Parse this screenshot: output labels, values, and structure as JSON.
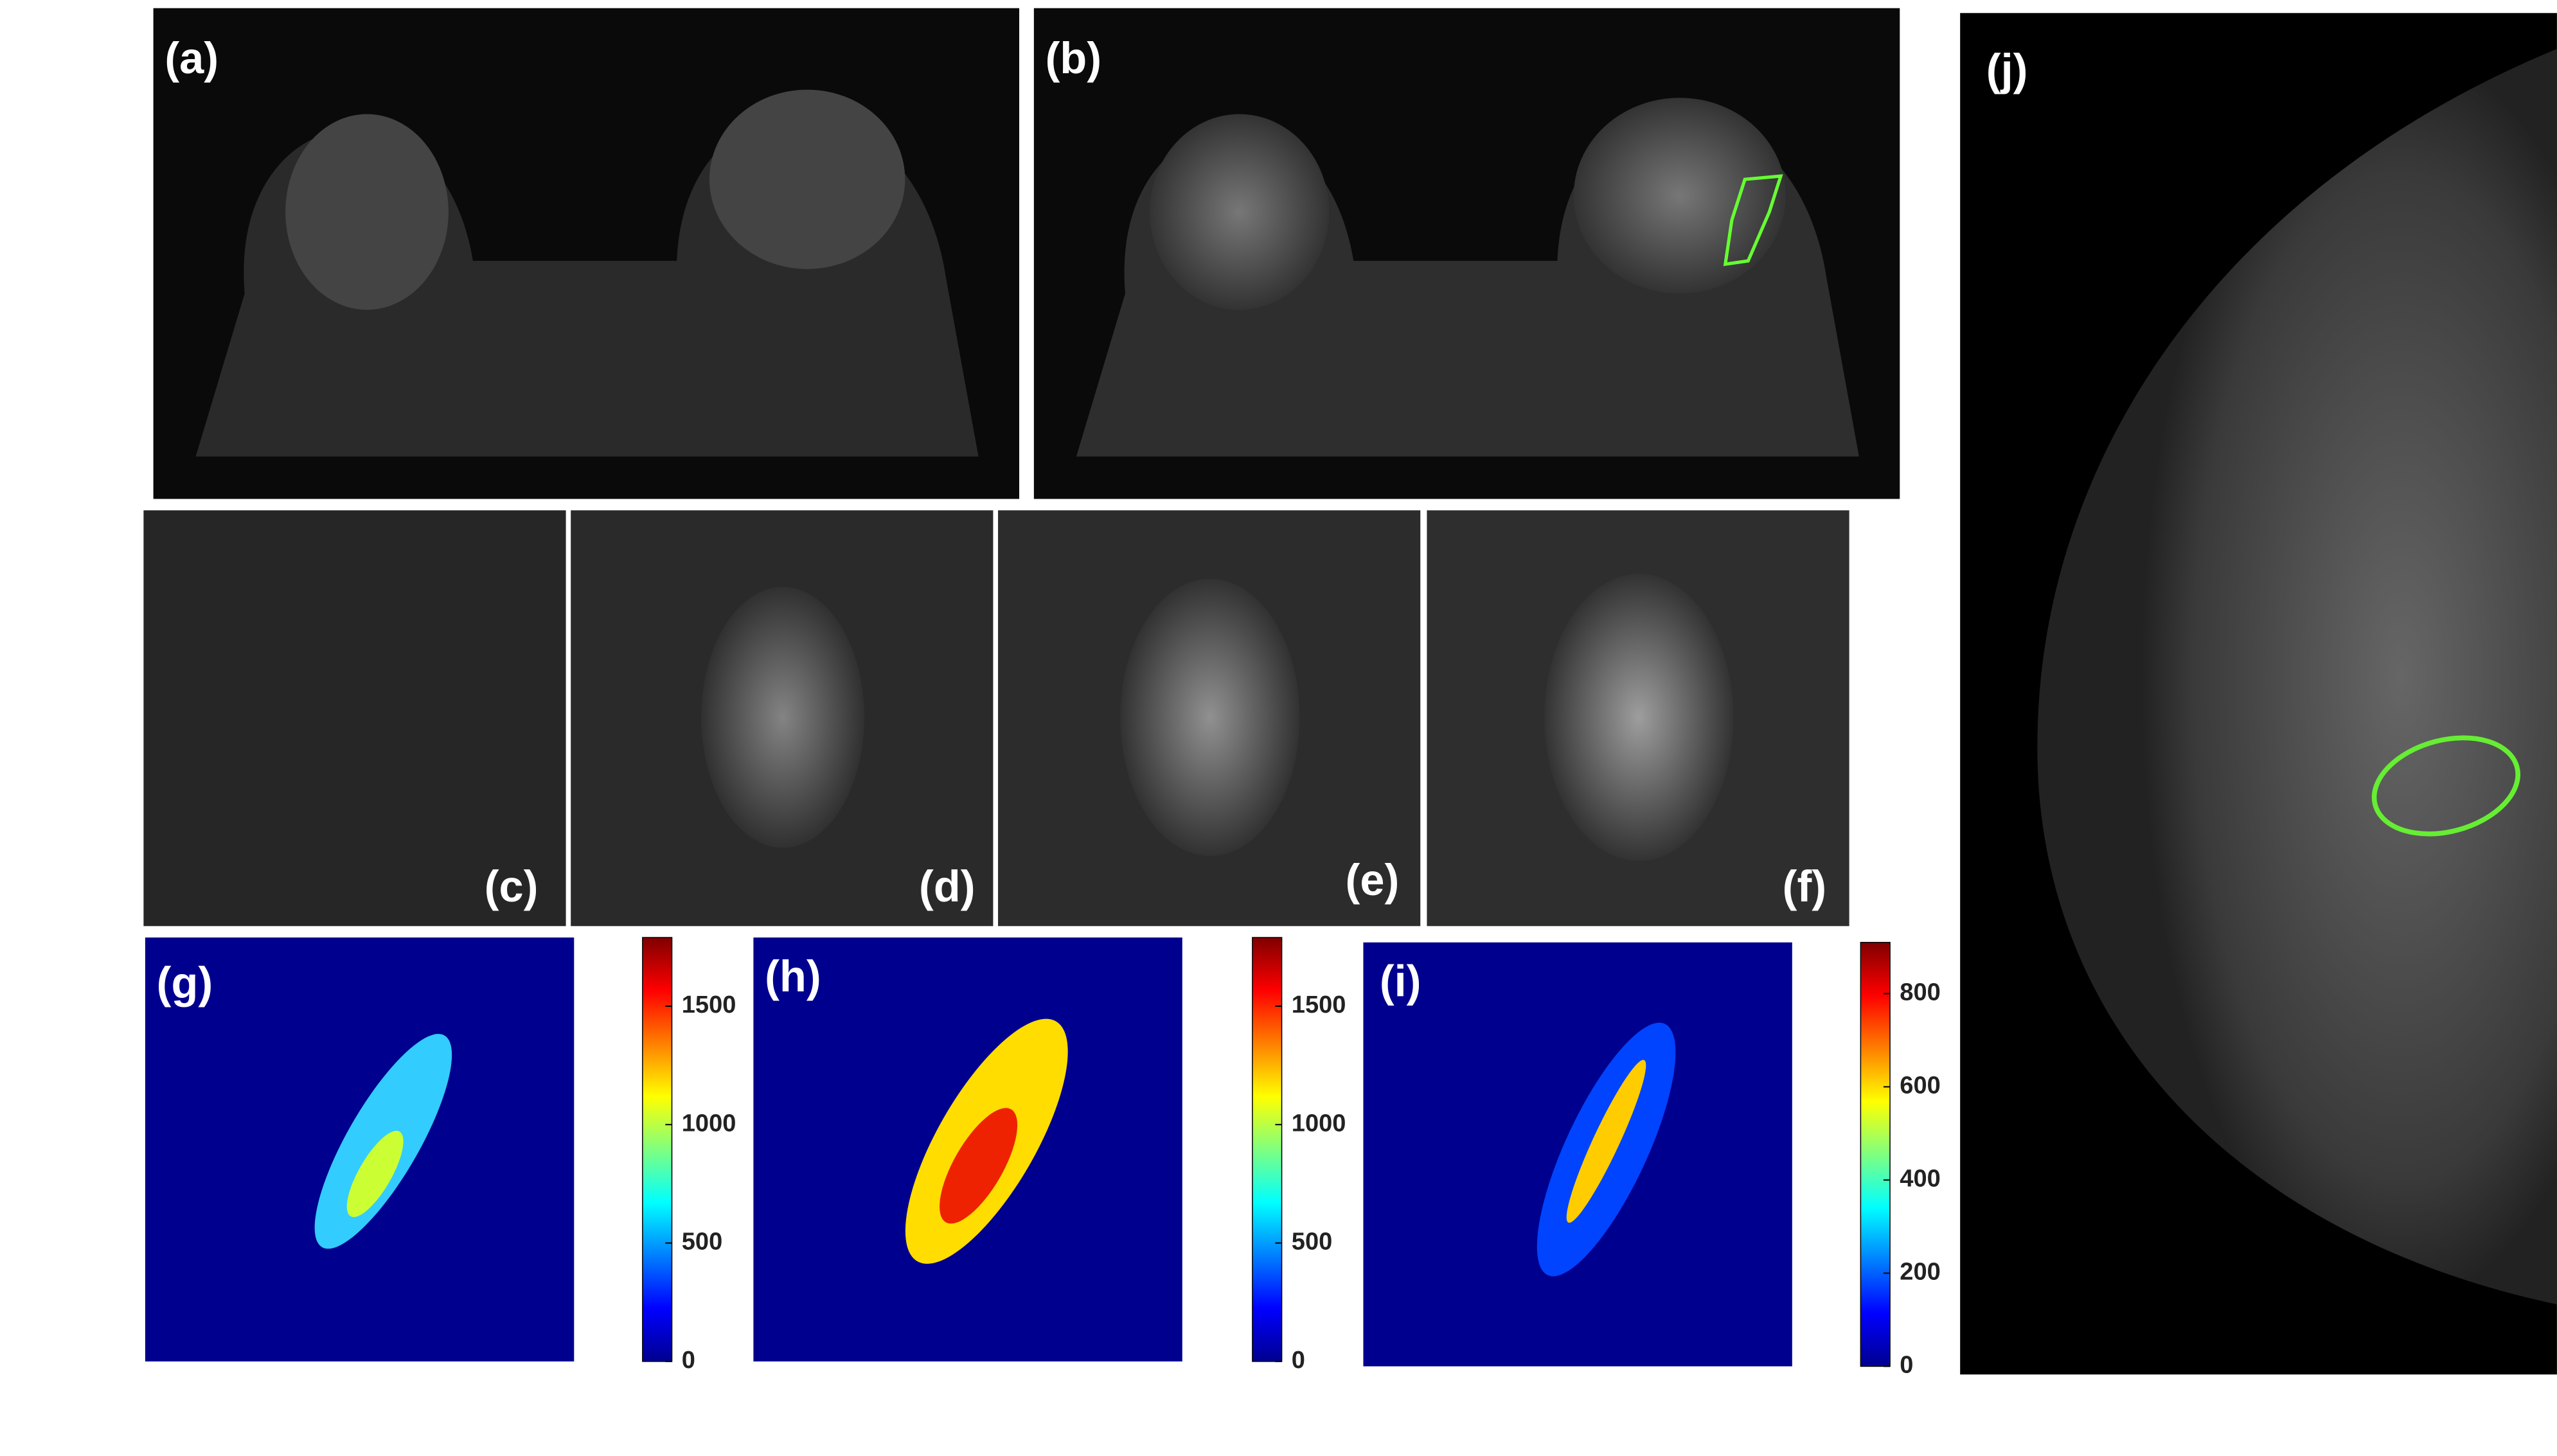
{
  "panels": {
    "a": "(a)",
    "b": "(b)",
    "c": "(c)",
    "d": "(d)",
    "e": "(e)",
    "f": "(f)",
    "g": "(g)",
    "h": "(h)",
    "i": "(i)",
    "j": "(j)"
  },
  "colorbars": [
    {
      "lim": [
        0,
        1790
      ],
      "ticks": [
        0,
        500,
        1000,
        1500
      ]
    },
    {
      "lim": [
        0,
        1790
      ],
      "ticks": [
        0,
        500,
        1000,
        1500
      ]
    },
    {
      "lim": [
        0,
        910
      ],
      "ticks": [
        0,
        200,
        400,
        600,
        800
      ]
    }
  ]
}
